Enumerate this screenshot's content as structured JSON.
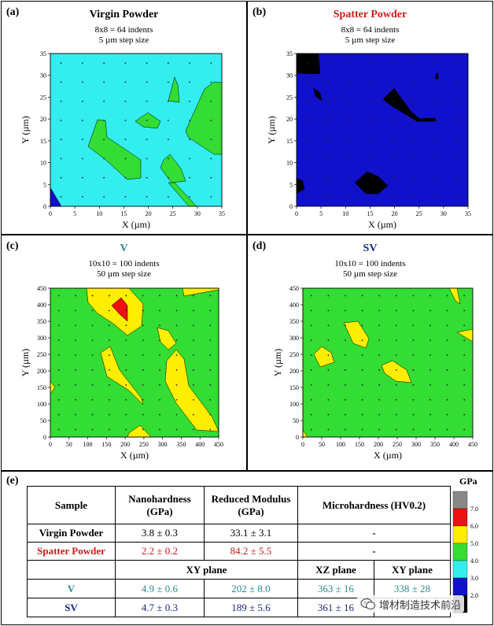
{
  "panels": {
    "a": {
      "label": "(a)",
      "title": "Virgin Powder",
      "title_color": "#000000",
      "sub1": "8x8 = 64 indents",
      "sub2": "5 µm step size",
      "xlabel": "X (µm)",
      "ylabel": "Y (µm)",
      "xticks": [
        "0",
        "5",
        "10",
        "15",
        "20",
        "25",
        "30",
        "35"
      ],
      "yticks": [
        "0",
        "5",
        "10",
        "15",
        "20",
        "25",
        "30",
        "35"
      ]
    },
    "b": {
      "label": "(b)",
      "title": "Spatter Powder",
      "title_color": "#cc1a1a",
      "sub1": "8x8 = 64 indents",
      "sub2": "5 µm step size",
      "xlabel": "X (µm)",
      "ylabel": "Y (µm)",
      "xticks": [
        "0",
        "5",
        "10",
        "15",
        "20",
        "25",
        "30",
        "35"
      ],
      "yticks": [
        "0",
        "5",
        "10",
        "15",
        "20",
        "25",
        "30",
        "35"
      ]
    },
    "c": {
      "label": "(c)",
      "title": "V",
      "title_color": "#2a8a8a",
      "sub1": "10x10 = 100 indents",
      "sub2": "50 µm step size",
      "xlabel": "X (µm)",
      "ylabel": "Y (µm)",
      "xticks": [
        "0",
        "50",
        "100",
        "150",
        "200",
        "250",
        "300",
        "350",
        "400",
        "450"
      ],
      "yticks": [
        "0",
        "50",
        "100",
        "150",
        "200",
        "250",
        "300",
        "350",
        "400",
        "450"
      ]
    },
    "d": {
      "label": "(d)",
      "title": "SV",
      "title_color": "#1a2a7a",
      "sub1": "10x10 = 100 indents",
      "sub2": "50 µm step size",
      "xlabel": "X (µm)",
      "ylabel": "Y (µm)",
      "xticks": [
        "0",
        "50",
        "100",
        "150",
        "200",
        "250",
        "300",
        "350",
        "400",
        "450"
      ],
      "yticks": [
        "0",
        "50",
        "100",
        "150",
        "200",
        "250",
        "300",
        "350",
        "400",
        "450"
      ]
    },
    "e": {
      "label": "(e)"
    }
  },
  "table": {
    "headers": [
      "Sample",
      "Nanohardness (GPa)",
      "Reduced Modulus (GPa)",
      "Microhardness (HV0.2)"
    ],
    "rows": [
      {
        "sample": "Virgin Powder",
        "nano": "3.8 ± 0.3",
        "modulus": "33.1 ± 3.1",
        "micro": "-",
        "color": "#000000"
      },
      {
        "sample": "Spatter Powder",
        "nano": "2.2 ± 0.2",
        "modulus": "84.2 ± 5.5",
        "micro": "-",
        "color": "#cc1a1a"
      }
    ],
    "plane_row": {
      "xy": "XY plane",
      "xz": "XZ plane",
      "xy2": "XY plane"
    },
    "rows2": [
      {
        "sample": "V",
        "nano": "4.9 ± 0.6",
        "modulus": "202 ± 8.0",
        "xz": "363 ± 16",
        "xy": "338 ± 28",
        "color": "#2a8a8a"
      },
      {
        "sample": "SV",
        "nano": "4.7 ± 0.3",
        "modulus": "189 ± 5.6",
        "xz": "361 ± 16",
        "xy": "",
        "color": "#1a2a7a"
      }
    ]
  },
  "colorbar": {
    "title": "GPa",
    "ticks": [
      "7.0",
      "6.0",
      "5.0",
      "4.0",
      "3.0",
      "2.0"
    ],
    "colors": [
      "#888888",
      "#ee1111",
      "#ffee00",
      "#33dd33",
      "#33eeee",
      "#1111cc",
      "#000000"
    ]
  },
  "watermark": {
    "text": "增材制造技术前沿"
  },
  "chart_data": [
    {
      "type": "heatmap",
      "title": "Virgin Powder",
      "xlabel": "X (µm)",
      "ylabel": "Y (µm)",
      "xlim": [
        0,
        35
      ],
      "ylim": [
        0,
        35
      ],
      "grid_points": "8x8 = 64 indents",
      "step": "5 µm",
      "dominant_level": "3.0-4.0 GPa",
      "secondary_level": "4.0-5.0 GPa"
    },
    {
      "type": "heatmap",
      "title": "Spatter Powder",
      "xlabel": "X (µm)",
      "ylabel": "Y (µm)",
      "xlim": [
        0,
        35
      ],
      "ylim": [
        0,
        35
      ],
      "grid_points": "8x8 = 64 indents",
      "step": "5 µm",
      "dominant_level": "2.0-3.0 GPa",
      "secondary_level": "<2.0 GPa"
    },
    {
      "type": "heatmap",
      "title": "V",
      "xlabel": "X (µm)",
      "ylabel": "Y (µm)",
      "xlim": [
        0,
        450
      ],
      "ylim": [
        0,
        450
      ],
      "grid_points": "10x10 = 100 indents",
      "step": "50 µm",
      "dominant_level": "4.0-5.0 GPa",
      "secondary_level": "5.0-6.0 GPa"
    },
    {
      "type": "heatmap",
      "title": "SV",
      "xlabel": "X (µm)",
      "ylabel": "Y (µm)",
      "xlim": [
        0,
        450
      ],
      "ylim": [
        0,
        450
      ],
      "grid_points": "10x10 = 100 indents",
      "step": "50 µm",
      "dominant_level": "4.0-5.0 GPa",
      "secondary_level": "5.0-6.0 GPa"
    }
  ]
}
